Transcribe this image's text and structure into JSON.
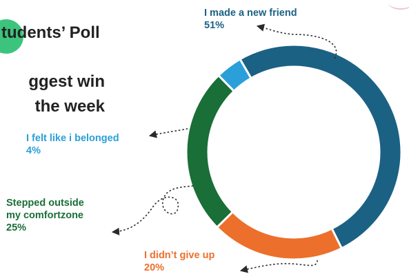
{
  "header": {
    "title": "tudents’ Poll",
    "headline_line1": "ggest win",
    "headline_line2": "the week"
  },
  "colors": {
    "badge": "#3cc47c",
    "text": "#222222"
  },
  "chart_data": {
    "type": "pie",
    "variant": "donut",
    "categories": [
      "I made a new friend",
      "I didn’t give up",
      "Stepped outside my comfortzone",
      "I felt like i belonged"
    ],
    "values": [
      51,
      20,
      25,
      4
    ],
    "value_labels": [
      "51%",
      "20%",
      "25%",
      "4%"
    ],
    "colors": [
      "#1b6184",
      "#ec6f2c",
      "#1a6e37",
      "#2a9fd9"
    ],
    "label_colors": [
      "#1b6184",
      "#ec6f2c",
      "#1a6e37",
      "#2a9fd9"
    ],
    "category_lines": [
      [
        "I made a new friend"
      ],
      [
        "I didn’t give up"
      ],
      [
        "Stepped outside",
        "my comfortzone"
      ],
      [
        "I felt like i belonged"
      ]
    ]
  }
}
